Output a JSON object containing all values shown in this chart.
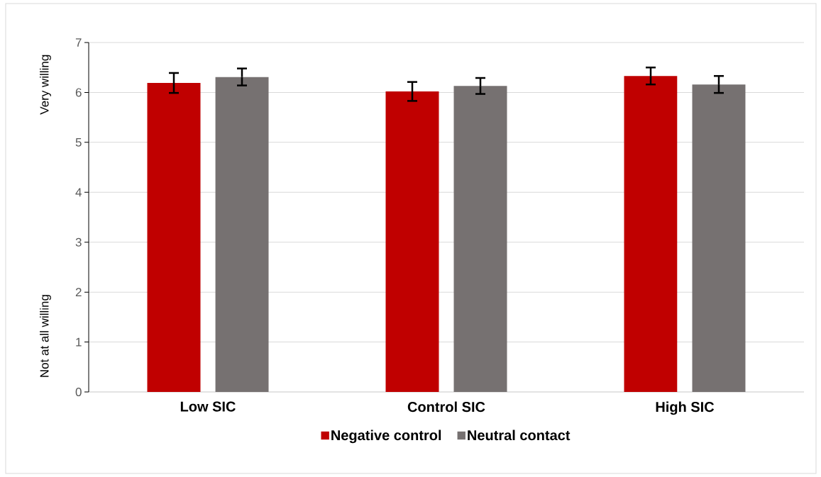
{
  "chart_data": {
    "type": "bar",
    "categories": [
      "Low SIC",
      "Control SIC",
      "High SIC"
    ],
    "series": [
      {
        "name": "Negative control",
        "color": "#c00000",
        "values": [
          6.19,
          6.02,
          6.33
        ],
        "errors": [
          0.2,
          0.19,
          0.17
        ]
      },
      {
        "name": "Neutral contact",
        "color": "#767171",
        "values": [
          6.31,
          6.13,
          6.16
        ],
        "errors": [
          0.17,
          0.16,
          0.17
        ]
      }
    ],
    "ylim": [
      0,
      7
    ],
    "yticks": [
      0,
      1,
      2,
      3,
      4,
      5,
      6,
      7
    ],
    "grid": "y",
    "legend": "bottom",
    "annotations": [
      "Very willing",
      "Not at all willing"
    ]
  }
}
